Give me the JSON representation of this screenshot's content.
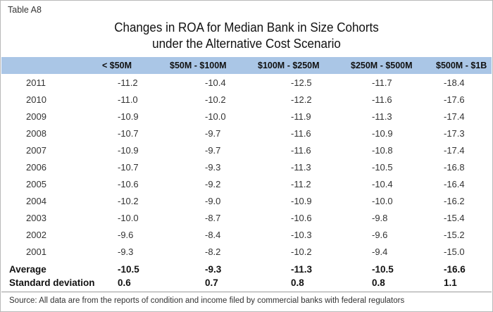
{
  "label": "Table A8",
  "title": {
    "line1": "Changes in ROA for Median Bank in Size Cohorts",
    "line2": "under the Alternative Cost Scenario"
  },
  "columns": [
    "< $50M",
    "$50M - $100M",
    "$100M - $250M",
    "$250M - $500M",
    "$500M - $1B"
  ],
  "rows": [
    {
      "year": "2011",
      "values": [
        "-11.2",
        "-10.4",
        "-12.5",
        "-11.7",
        "-18.4"
      ]
    },
    {
      "year": "2010",
      "values": [
        "-11.0",
        "-10.2",
        "-12.2",
        "-11.6",
        "-17.6"
      ]
    },
    {
      "year": "2009",
      "values": [
        "-10.9",
        "-10.0",
        "-11.9",
        "-11.3",
        "-17.4"
      ]
    },
    {
      "year": "2008",
      "values": [
        "-10.7",
        "-9.7",
        "-11.6",
        "-10.9",
        "-17.3"
      ]
    },
    {
      "year": "2007",
      "values": [
        "-10.9",
        "-9.7",
        "-11.6",
        "-10.8",
        "-17.4"
      ]
    },
    {
      "year": "2006",
      "values": [
        "-10.7",
        "-9.3",
        "-11.3",
        "-10.5",
        "-16.8"
      ]
    },
    {
      "year": "2005",
      "values": [
        "-10.6",
        "-9.2",
        "-11.2",
        "-10.4",
        "-16.4"
      ]
    },
    {
      "year": "2004",
      "values": [
        "-10.2",
        "-9.0",
        "-10.9",
        "-10.0",
        "-16.2"
      ]
    },
    {
      "year": "2003",
      "values": [
        "-10.0",
        "-8.7",
        "-10.6",
        "-9.8",
        "-15.4"
      ]
    },
    {
      "year": "2002",
      "values": [
        "-9.6",
        "-8.4",
        "-10.3",
        "-9.6",
        "-15.2"
      ]
    },
    {
      "year": "2001",
      "values": [
        "-9.3",
        "-8.2",
        "-10.2",
        "-9.4",
        "-15.0"
      ]
    }
  ],
  "summary": [
    {
      "label": "Average",
      "values": [
        "-10.5",
        "-9.3",
        "-11.3",
        "-10.5",
        "-16.6"
      ]
    },
    {
      "label": "Standard deviation",
      "values": [
        "0.6",
        "0.7",
        "0.8",
        "0.8",
        "1.1"
      ]
    }
  ],
  "source": "Source: All data are from the reports of condition and income filed by commercial banks with federal regulators",
  "colors": {
    "header_band": "#aac6e6"
  }
}
